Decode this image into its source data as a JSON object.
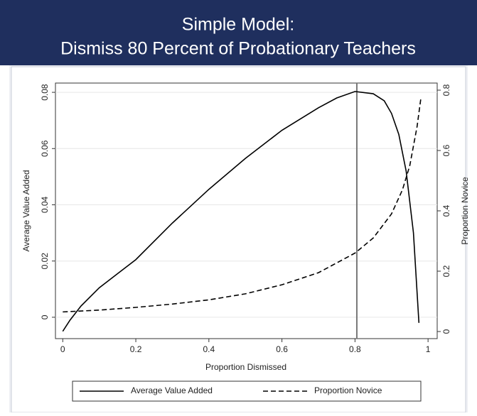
{
  "chart_data": {
    "type": "line",
    "title": [
      "Simple Model:",
      "Dismiss 80 Percent of Probationary Teachers"
    ],
    "xlabel": "Proportion Dismissed",
    "ylabel": "Average Value Added",
    "y2label": "Proportion Novice",
    "xlim": [
      -0.02,
      1.025
    ],
    "xticks": [
      0,
      0.2,
      0.4,
      0.6,
      0.8,
      1
    ],
    "ylim": [
      -0.0076,
      0.0833
    ],
    "yticks": [
      0,
      0.02,
      0.04,
      0.06,
      0.08
    ],
    "y2lim": [
      -0.0235,
      0.8235
    ],
    "y2ticks": [
      0,
      0.2,
      0.4,
      0.6,
      0.8
    ],
    "grid": true,
    "vline": 0.805,
    "legend": "bottom",
    "series": [
      {
        "name": "Average Value Added",
        "color": "#000000",
        "dash": "solid",
        "x": [
          0,
          0.02,
          0.05,
          0.1,
          0.15,
          0.2,
          0.3,
          0.4,
          0.5,
          0.6,
          0.7,
          0.75,
          0.8,
          0.85,
          0.88,
          0.9,
          0.92,
          0.94,
          0.96,
          0.975
        ],
        "values": [
          -0.005,
          -0.001,
          0.004,
          0.0105,
          0.0155,
          0.0205,
          0.0335,
          0.0455,
          0.0565,
          0.0665,
          0.0745,
          0.078,
          0.0803,
          0.0795,
          0.077,
          0.0725,
          0.065,
          0.052,
          0.03,
          -0.002
        ]
      },
      {
        "name": "Proportion Novice",
        "color": "#000000",
        "dash": "dashed",
        "axis": "y2",
        "x": [
          0,
          0.1,
          0.2,
          0.3,
          0.4,
          0.5,
          0.6,
          0.7,
          0.8,
          0.85,
          0.9,
          0.93,
          0.95,
          0.97,
          0.98
        ],
        "values": [
          0.065,
          0.071,
          0.08,
          0.091,
          0.105,
          0.125,
          0.155,
          0.195,
          0.26,
          0.31,
          0.39,
          0.47,
          0.55,
          0.68,
          0.77
        ]
      }
    ]
  }
}
